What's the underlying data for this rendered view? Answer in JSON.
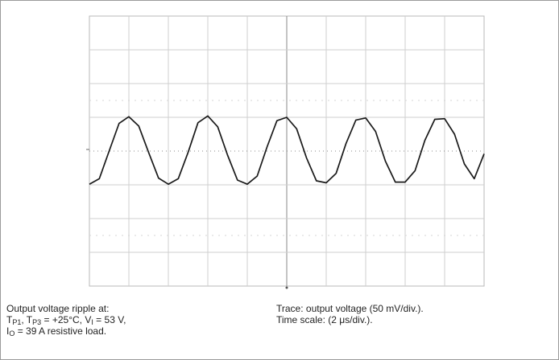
{
  "caption_left": {
    "line1": "Output voltage ripple  at:",
    "line2_prefix": "T",
    "line2_sub1": "P1",
    "line2_mid": ", T",
    "line2_sub2": "P3",
    "line2_mid2": " = +25°C, V",
    "line2_sub3": "I",
    "line2_suffix": " = 53 V,",
    "line3_prefix": "I",
    "line3_sub": "O",
    "line3_suffix": " = 39 A resistive load."
  },
  "caption_right": {
    "line1": "Trace: output voltage (50 mV/div.).",
    "line2": "Time scale: (2 μs/div.)."
  },
  "chart_data": {
    "type": "line",
    "title": "",
    "xlabel": "",
    "ylabel": "",
    "x_divisions": 10,
    "y_divisions": 8,
    "xlim": [
      0,
      20
    ],
    "ylim": [
      -200,
      200
    ],
    "x_unit": "μs",
    "y_unit": "mV",
    "grid": true,
    "series": [
      {
        "x": [
          0,
          0.5,
          1,
          1.5,
          2,
          2.5,
          3,
          3.5,
          4,
          4.5,
          5,
          5.5,
          6,
          6.5,
          7,
          7.5,
          8,
          8.5,
          9,
          9.5,
          10,
          10.5,
          11,
          11.5,
          12,
          12.5,
          13,
          13.5,
          14,
          14.5,
          15,
          15.5,
          16,
          16.5,
          17,
          17.5,
          18,
          18.5,
          19,
          19.5,
          20
        ],
        "values": [
          -49,
          -41,
          0,
          41,
          51,
          37,
          -2,
          -40,
          -49,
          -41,
          -2,
          42,
          52,
          36,
          -6,
          -43,
          -49,
          -37,
          6,
          45,
          50,
          33,
          -10,
          -44,
          -47,
          -33,
          11,
          46,
          49,
          29,
          -15,
          -46,
          -46,
          -29,
          16,
          47,
          48,
          25,
          -19,
          -41,
          -4
        ]
      }
    ]
  }
}
